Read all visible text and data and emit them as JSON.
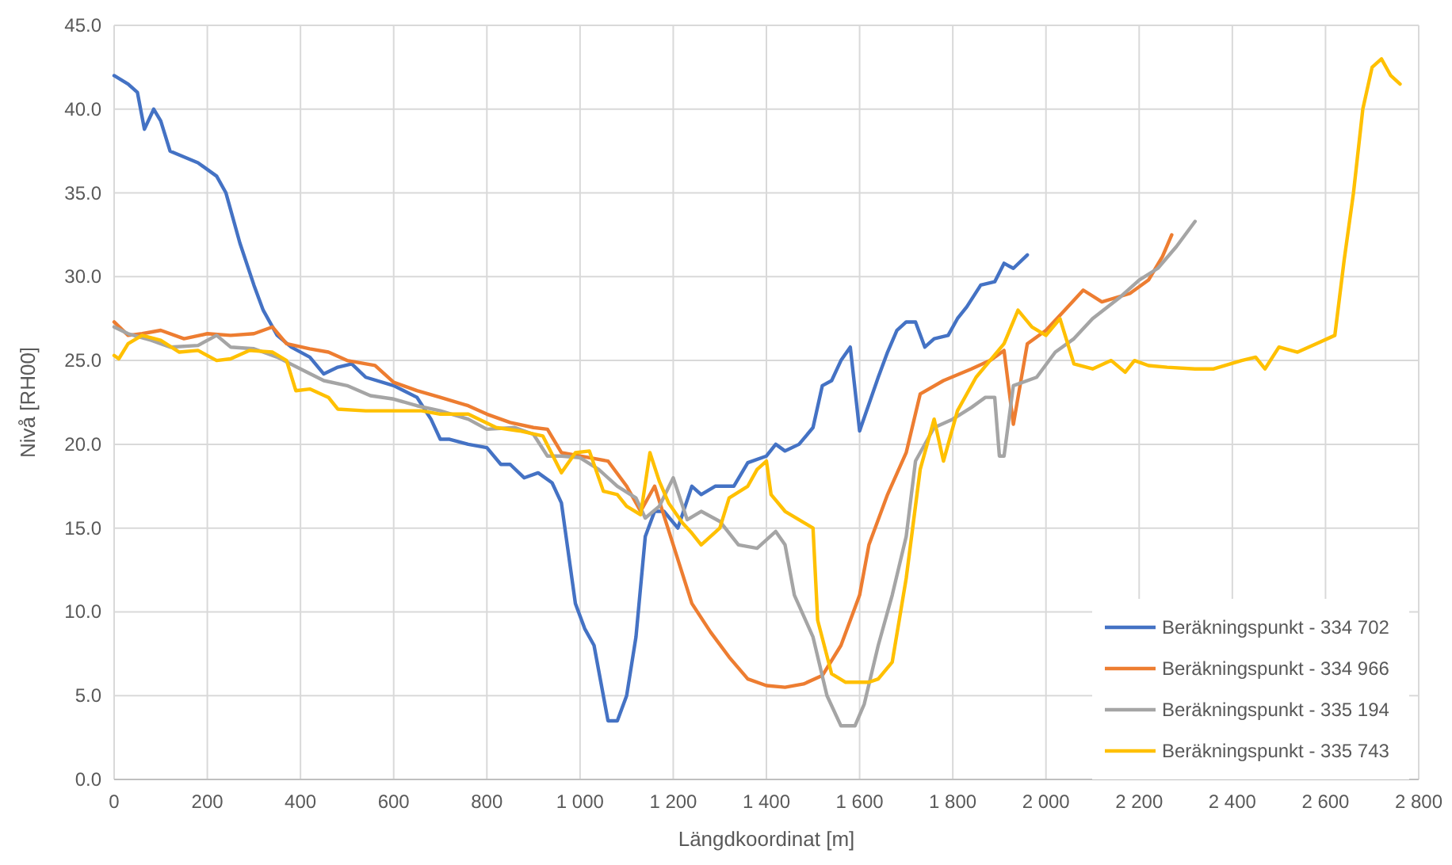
{
  "chart_data": {
    "type": "line",
    "xlabel": "Längdkoordinat [m]",
    "ylabel": "Nivå [RH00]",
    "xlim": [
      0,
      2800
    ],
    "ylim": [
      0,
      45
    ],
    "xticks": [
      0,
      200,
      400,
      600,
      800,
      {
        "value": 1000,
        "label": "1 000"
      },
      {
        "value": 1200,
        "label": "1 200"
      },
      {
        "value": 1400,
        "label": "1 400"
      },
      {
        "value": 1600,
        "label": "1 600"
      },
      {
        "value": 1800,
        "label": "1 800"
      },
      {
        "value": 2000,
        "label": "2 000"
      },
      {
        "value": 2200,
        "label": "2 200"
      },
      {
        "value": 2400,
        "label": "2 400"
      },
      {
        "value": 2600,
        "label": "2 600"
      },
      {
        "value": 2800,
        "label": "2 800"
      }
    ],
    "yticks": [
      {
        "value": 0,
        "label": "0.0"
      },
      {
        "value": 5,
        "label": "5.0"
      },
      {
        "value": 10,
        "label": "10.0"
      },
      {
        "value": 15,
        "label": "15.0"
      },
      {
        "value": 20,
        "label": "20.0"
      },
      {
        "value": 25,
        "label": "25.0"
      },
      {
        "value": 30,
        "label": "30.0"
      },
      {
        "value": 35,
        "label": "35.0"
      },
      {
        "value": 40,
        "label": "40.0"
      },
      {
        "value": 45,
        "label": "45.0"
      }
    ],
    "grid": true,
    "legend": "bottom right",
    "marker": "none",
    "line_style": "solid",
    "series": [
      {
        "name": "Beräkningspunkt - 334 702",
        "color": "#4472c4",
        "x": [
          0,
          30,
          50,
          65,
          85,
          100,
          120,
          180,
          220,
          240,
          270,
          300,
          320,
          350,
          380,
          420,
          450,
          480,
          510,
          540,
          600,
          650,
          680,
          700,
          720,
          760,
          800,
          830,
          850,
          880,
          910,
          940,
          960,
          990,
          1010,
          1030,
          1060,
          1080,
          1100,
          1120,
          1140,
          1160,
          1180,
          1210,
          1240,
          1260,
          1290,
          1330,
          1360,
          1400,
          1420,
          1440,
          1470,
          1500,
          1520,
          1540,
          1560,
          1580,
          1600,
          1640,
          1660,
          1680,
          1700,
          1720,
          1740,
          1760,
          1790,
          1810,
          1830,
          1860,
          1890,
          1910,
          1930,
          1960
        ],
        "values": [
          42.0,
          41.5,
          41.0,
          38.8,
          40.0,
          39.3,
          37.5,
          36.8,
          36.0,
          35.0,
          32.0,
          29.5,
          28.0,
          26.5,
          25.8,
          25.2,
          24.2,
          24.6,
          24.8,
          24.0,
          23.5,
          22.8,
          21.5,
          20.3,
          20.3,
          20.0,
          19.8,
          18.8,
          18.8,
          18.0,
          18.3,
          17.7,
          16.5,
          10.5,
          9.0,
          8.0,
          3.5,
          3.5,
          5.0,
          8.5,
          14.5,
          16.0,
          16.0,
          15.0,
          17.5,
          17.0,
          17.5,
          17.5,
          18.9,
          19.3,
          20.0,
          19.6,
          20.0,
          21.0,
          23.5,
          23.8,
          25.0,
          25.8,
          20.8,
          24.0,
          25.5,
          26.8,
          27.3,
          27.3,
          25.8,
          26.3,
          26.5,
          27.5,
          28.2,
          29.5,
          29.7,
          30.8,
          30.5,
          31.3
        ]
      },
      {
        "name": "Beräkningspunkt - 334 966",
        "color": "#ed7d31",
        "x": [
          0,
          30,
          60,
          100,
          150,
          200,
          250,
          300,
          340,
          370,
          420,
          460,
          500,
          560,
          600,
          650,
          700,
          760,
          800,
          850,
          900,
          930,
          960,
          1000,
          1060,
          1100,
          1130,
          1160,
          1200,
          1240,
          1280,
          1320,
          1360,
          1400,
          1440,
          1480,
          1520,
          1560,
          1600,
          1620,
          1660,
          1700,
          1730,
          1780,
          1840,
          1880,
          1910,
          1930,
          1960,
          2000,
          2040,
          2080,
          2120,
          2180,
          2220,
          2250,
          2270
        ],
        "values": [
          27.3,
          26.5,
          26.6,
          26.8,
          26.3,
          26.6,
          26.5,
          26.6,
          27.0,
          26.0,
          25.7,
          25.5,
          25.0,
          24.7,
          23.7,
          23.2,
          22.8,
          22.3,
          21.8,
          21.3,
          21.0,
          20.9,
          19.5,
          19.3,
          19.0,
          17.5,
          16.0,
          17.5,
          14.0,
          10.5,
          8.8,
          7.3,
          6.0,
          5.6,
          5.5,
          5.7,
          6.2,
          8.0,
          11.0,
          14.0,
          17.0,
          19.5,
          23.0,
          23.8,
          24.5,
          25.0,
          25.6,
          21.2,
          26.0,
          26.8,
          28.0,
          29.2,
          28.5,
          29.0,
          29.8,
          31.2,
          32.5
        ]
      },
      {
        "name": "Beräkningspunkt - 335 194",
        "color": "#a5a5a5",
        "x": [
          0,
          30,
          80,
          120,
          180,
          220,
          250,
          300,
          350,
          400,
          450,
          500,
          550,
          600,
          650,
          700,
          760,
          800,
          860,
          900,
          930,
          960,
          1000,
          1040,
          1080,
          1120,
          1140,
          1170,
          1200,
          1230,
          1260,
          1300,
          1340,
          1380,
          1420,
          1440,
          1460,
          1500,
          1530,
          1560,
          1590,
          1610,
          1640,
          1670,
          1700,
          1720,
          1760,
          1800,
          1840,
          1870,
          1890,
          1900,
          1910,
          1930,
          1980,
          2020,
          2060,
          2100,
          2160,
          2200,
          2240,
          2280,
          2320
        ],
        "values": [
          27.0,
          26.6,
          26.2,
          25.8,
          25.9,
          26.5,
          25.8,
          25.7,
          25.2,
          24.5,
          23.8,
          23.5,
          22.9,
          22.7,
          22.3,
          22.0,
          21.5,
          20.9,
          21.0,
          20.6,
          19.3,
          19.3,
          19.2,
          18.5,
          17.5,
          16.8,
          15.6,
          16.3,
          18.0,
          15.5,
          16.0,
          15.4,
          14.0,
          13.8,
          14.8,
          14.0,
          11.0,
          8.5,
          5.0,
          3.2,
          3.2,
          4.5,
          8.0,
          11.0,
          14.5,
          19.0,
          21.0,
          21.5,
          22.2,
          22.8,
          22.8,
          19.3,
          19.3,
          23.5,
          24.0,
          25.5,
          26.3,
          27.5,
          28.8,
          29.8,
          30.5,
          31.8,
          33.3
        ]
      },
      {
        "name": "Beräkningspunkt - 335 743",
        "color": "#ffc000",
        "x": [
          0,
          10,
          30,
          60,
          100,
          140,
          180,
          220,
          250,
          290,
          340,
          370,
          390,
          420,
          460,
          480,
          540,
          600,
          660,
          700,
          760,
          820,
          870,
          920,
          960,
          990,
          1020,
          1050,
          1080,
          1100,
          1130,
          1150,
          1170,
          1190,
          1220,
          1240,
          1260,
          1300,
          1320,
          1360,
          1380,
          1400,
          1410,
          1440,
          1470,
          1500,
          1510,
          1540,
          1570,
          1620,
          1640,
          1670,
          1700,
          1730,
          1760,
          1780,
          1810,
          1850,
          1880,
          1910,
          1940,
          1970,
          2000,
          2030,
          2060,
          2100,
          2140,
          2170,
          2190,
          2220,
          2260,
          2320,
          2360,
          2420,
          2450,
          2470,
          2500,
          2540,
          2580,
          2620,
          2640,
          2660,
          2680,
          2700,
          2720,
          2740,
          2760
        ],
        "values": [
          25.3,
          25.1,
          26.0,
          26.5,
          26.2,
          25.5,
          25.6,
          25.0,
          25.1,
          25.6,
          25.5,
          25.0,
          23.2,
          23.3,
          22.8,
          22.1,
          22.0,
          22.0,
          22.0,
          21.8,
          21.8,
          21.0,
          20.8,
          20.5,
          18.3,
          19.5,
          19.6,
          17.2,
          17.0,
          16.3,
          15.8,
          19.5,
          17.8,
          16.5,
          15.3,
          14.7,
          14.0,
          15.0,
          16.8,
          17.5,
          18.5,
          19.0,
          17.0,
          16.0,
          15.5,
          15.0,
          9.5,
          6.3,
          5.8,
          5.8,
          6.0,
          7.0,
          12.0,
          18.5,
          21.5,
          19.0,
          22.0,
          24.0,
          25.0,
          26.0,
          28.0,
          27.0,
          26.5,
          27.5,
          24.8,
          24.5,
          25.0,
          24.3,
          25.0,
          24.7,
          24.6,
          24.5,
          24.5,
          25.0,
          25.2,
          24.5,
          25.8,
          25.5,
          26.0,
          26.5,
          31.0,
          35.0,
          40.0,
          42.5,
          43.0,
          42.0,
          41.5
        ]
      }
    ]
  }
}
